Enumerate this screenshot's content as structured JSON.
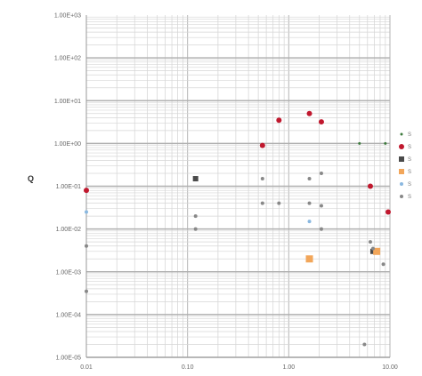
{
  "chart_data": {
    "type": "scatter",
    "title": "",
    "xlabel": "",
    "ylabel": "Q",
    "x_scale": "log",
    "y_scale": "log",
    "xlim": [
      0.01,
      10
    ],
    "ylim": [
      1e-05,
      1000.0
    ],
    "x_ticks": [
      {
        "value": 0.01,
        "label": "0.01"
      },
      {
        "value": 0.1,
        "label": "0.10"
      },
      {
        "value": 1,
        "label": "1.00"
      },
      {
        "value": 10,
        "label": "10.00"
      }
    ],
    "y_ticks": [
      {
        "value": 1e-05,
        "label": "1.00E-05"
      },
      {
        "value": 0.0001,
        "label": "1.00E-04"
      },
      {
        "value": 0.001,
        "label": "1.00E-03"
      },
      {
        "value": 0.01,
        "label": "1.00E-02"
      },
      {
        "value": 0.1,
        "label": "1.00E-01"
      },
      {
        "value": 1,
        "label": "1.00E+00"
      },
      {
        "value": 10,
        "label": "1.00E+01"
      },
      {
        "value": 100,
        "label": "1.00E+02"
      },
      {
        "value": 1000,
        "label": "1.00E+03"
      }
    ],
    "grid": true,
    "legend_position": "right",
    "series": [
      {
        "legend_label": "S",
        "color": "#3d7a3d",
        "marker": "circle",
        "size": 3,
        "points": [
          [
            5,
            1
          ],
          [
            9,
            1
          ]
        ]
      },
      {
        "legend_label": "S",
        "color": "#c0182e",
        "marker": "circle",
        "size": 6,
        "points": [
          [
            0.01,
            0.08
          ],
          [
            0.55,
            0.9
          ],
          [
            0.8,
            3.5
          ],
          [
            1.6,
            5
          ],
          [
            2.1,
            3.2
          ],
          [
            6.4,
            0.1
          ],
          [
            9.6,
            0.025
          ]
        ]
      },
      {
        "legend_label": "S",
        "color": "#4a4a4a",
        "marker": "square",
        "size": 6,
        "points": [
          [
            0.12,
            0.15
          ],
          [
            6.8,
            0.003
          ]
        ]
      },
      {
        "legend_label": "S",
        "color": "#f2a65a",
        "marker": "square",
        "size": 8,
        "points": [
          [
            1.6,
            0.002
          ],
          [
            7.4,
            0.003
          ]
        ]
      },
      {
        "legend_label": "S",
        "color": "#8ab8e0",
        "marker": "circle",
        "size": 4,
        "points": [
          [
            0.01,
            0.025
          ],
          [
            1.6,
            0.015
          ]
        ]
      },
      {
        "legend_label": "S",
        "color": "#888888",
        "marker": "circle",
        "size": 4,
        "points": [
          [
            0.01,
            0.004
          ],
          [
            0.01,
            0.00035
          ],
          [
            0.12,
            0.02
          ],
          [
            0.12,
            0.01
          ],
          [
            0.55,
            0.15
          ],
          [
            0.55,
            0.04
          ],
          [
            0.8,
            0.04
          ],
          [
            1.6,
            0.15
          ],
          [
            1.6,
            0.04
          ],
          [
            2.1,
            0.2
          ],
          [
            2.1,
            0.035
          ],
          [
            2.1,
            0.01
          ],
          [
            6.4,
            0.005
          ],
          [
            6.8,
            0.0035
          ],
          [
            8.6,
            0.0015
          ],
          [
            5.6,
            2e-05
          ]
        ]
      }
    ]
  }
}
